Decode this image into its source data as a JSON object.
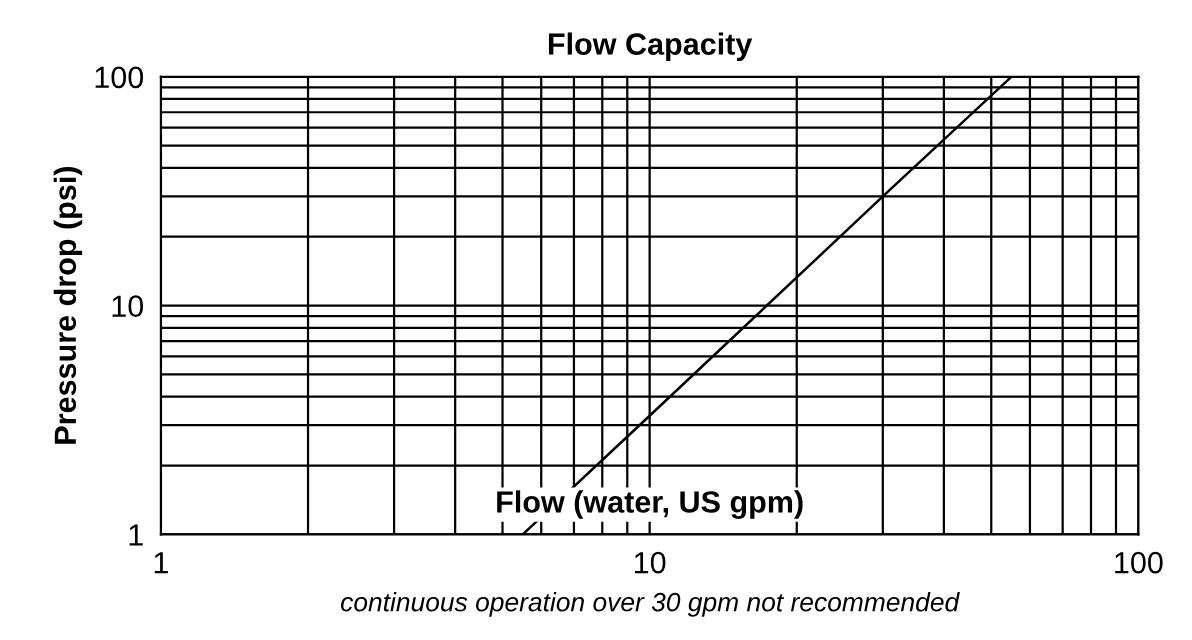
{
  "chart_data": {
    "type": "line",
    "title": "Flow Capacity",
    "xlabel": "Flow (water, US gpm)",
    "ylabel": "Pressure drop (psi)",
    "annotations": [
      "continuous operation over 30 gpm not recommended"
    ],
    "x": [
      5.5,
      10,
      30,
      55
    ],
    "series": [
      {
        "color": "#000000",
        "values": [
          1,
          3.3,
          30,
          100
        ]
      }
    ],
    "log": "xy",
    "xlim": [
      1,
      100
    ],
    "ylim": [
      1,
      100
    ],
    "xticks": [
      1,
      {
        "value": 2,
        "label": null
      },
      {
        "value": 3,
        "label": null
      },
      {
        "value": 4,
        "label": null
      },
      {
        "value": 5,
        "label": null
      },
      {
        "value": 6,
        "label": null
      },
      {
        "value": 7,
        "label": null
      },
      {
        "value": 8,
        "label": null
      },
      {
        "value": 9,
        "label": null
      },
      10,
      {
        "value": 20,
        "label": null
      },
      {
        "value": 30,
        "label": null
      },
      {
        "value": 40,
        "label": null
      },
      {
        "value": 50,
        "label": null
      },
      {
        "value": 60,
        "label": null
      },
      {
        "value": 70,
        "label": null
      },
      {
        "value": 80,
        "label": null
      },
      {
        "value": 90,
        "label": null
      },
      100
    ],
    "yticks": [
      1,
      {
        "value": 2,
        "label": null
      },
      {
        "value": 3,
        "label": null
      },
      {
        "value": 4,
        "label": null
      },
      {
        "value": 5,
        "label": null
      },
      {
        "value": 6,
        "label": null
      },
      {
        "value": 7,
        "label": null
      },
      {
        "value": 8,
        "label": null
      },
      {
        "value": 9,
        "label": null
      },
      10,
      {
        "value": 20,
        "label": null
      },
      {
        "value": 30,
        "label": null
      },
      {
        "value": 40,
        "label": null
      },
      {
        "value": 50,
        "label": null
      },
      {
        "value": 60,
        "label": null
      },
      {
        "value": 70,
        "label": null
      },
      {
        "value": 80,
        "label": null
      },
      {
        "value": 90,
        "label": null
      },
      100
    ],
    "grid": true,
    "legend": false,
    "marker": "none",
    "line_style": "solid"
  }
}
